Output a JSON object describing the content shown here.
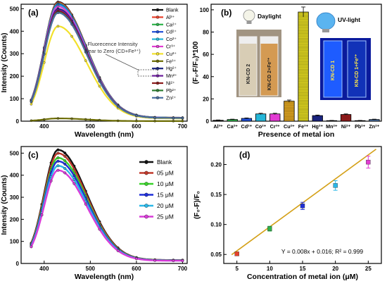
{
  "panels": [
    {
      "label": "(a)",
      "chart_data": {
        "type": "line",
        "xlabel": "Wavelength (nm)",
        "ylabel": "Intensity (Counts)",
        "xlim": [
          350,
          710
        ],
        "ylim": [
          0,
          520
        ],
        "xticks": [
          400,
          500,
          600,
          700
        ],
        "yticks": [
          0,
          100,
          200,
          300,
          400,
          500
        ],
        "peak_wavelength": 430,
        "annotation": [
          "Fluorecence Intensity",
          "Near to Zero (CD+Fe³⁺)"
        ],
        "series": [
          {
            "name": "Blank",
            "peak": 515,
            "color": "#111111",
            "marker": "o"
          },
          {
            "name": "Al³⁺",
            "peak": 512,
            "color": "#e8402a",
            "marker": "o"
          },
          {
            "name": "Ca²⁺",
            "peak": 508,
            "color": "#2db34a",
            "marker": "o"
          },
          {
            "name": "Cd²⁺",
            "peak": 505,
            "color": "#1f4fd8",
            "marker": "o"
          },
          {
            "name": "Co²⁺",
            "peak": 500,
            "color": "#24b6d8",
            "marker": "o"
          },
          {
            "name": "Cr³⁺",
            "peak": 495,
            "color": "#e23bd3",
            "marker": "o"
          },
          {
            "name": "Cu²⁺",
            "peak": 410,
            "color": "#f2e12b",
            "marker": "o"
          },
          {
            "name": "Fe³⁺",
            "peak": 12,
            "color": "#6b6b00",
            "marker": "o"
          },
          {
            "name": "Hg²⁺",
            "peak": 485,
            "color": "#1a237e",
            "marker": "o"
          },
          {
            "name": "Mn²⁺",
            "peak": 480,
            "color": "#6a1b9a",
            "marker": "o"
          },
          {
            "name": "Ni²⁺",
            "peak": 475,
            "color": "#8b1a1a",
            "marker": "o"
          },
          {
            "name": "Pb²⁺",
            "peak": 470,
            "color": "#2e7d32",
            "marker": "o"
          },
          {
            "name": "Zn²⁺",
            "peak": 468,
            "color": "#4a6fa0",
            "marker": "o"
          }
        ]
      }
    },
    {
      "label": "(b)",
      "chart_data": {
        "type": "bar",
        "xlabel": "Presence of metal ion",
        "ylabel": "(F₀-F/F₀)*100",
        "ylim": [
          0,
          105
        ],
        "yticks": [
          0,
          20,
          40,
          60,
          80,
          100
        ],
        "categories": [
          "Al³⁺",
          "Ca²⁺",
          "Cd²⁺",
          "Co²⁺",
          "Cr³⁺",
          "Cu²⁺",
          "Fe³⁺",
          "Hg²⁺",
          "Mn²⁺",
          "Ni²⁺",
          "Pb²⁺",
          "Zn²⁺"
        ],
        "values": [
          0.8,
          1.5,
          2.5,
          6.5,
          6.5,
          18,
          98,
          5,
          0.5,
          6,
          0.5,
          1.5
        ],
        "errors": [
          0.3,
          0.3,
          0.4,
          0.6,
          0.6,
          1.0,
          4.5,
          0.5,
          0.2,
          0.5,
          0.2,
          0.3
        ],
        "colors": [
          "#111111",
          "#2db34a",
          "#1f4fd8",
          "#24b6d8",
          "#e23bd3",
          "#d8a020",
          "#d8d020",
          "#1a237e",
          "#e0e0e0",
          "#8b1a1a",
          "#2e7d32",
          "#4a6fa0"
        ],
        "inset_left": {
          "title": "Daylight",
          "vial1": "KN-CD 2",
          "vial2": "KN-CD 2+Fe³⁺"
        },
        "inset_right": {
          "title": "UV-light",
          "vial1": "KN-CD 1",
          "vial2": "KN-CD 1+Fe³⁺"
        }
      }
    },
    {
      "label": "(c)",
      "chart_data": {
        "type": "line",
        "xlabel": "Wavelength (nm)",
        "ylabel": "Intensity (Counts)",
        "xlim": [
          350,
          710
        ],
        "ylim": [
          0,
          530
        ],
        "xticks": [
          400,
          500,
          600,
          700
        ],
        "yticks": [
          0,
          100,
          200,
          300,
          400,
          500
        ],
        "peak_wavelength": 430,
        "series": [
          {
            "name": "Blank",
            "peak": 500,
            "color": "#111111"
          },
          {
            "name": "05 μM",
            "peak": 485,
            "color": "#c0392b"
          },
          {
            "name": "10 μM",
            "peak": 465,
            "color": "#39d22a"
          },
          {
            "name": "15 μM",
            "peak": 450,
            "color": "#1f2fd8"
          },
          {
            "name": "20 μM",
            "peak": 430,
            "color": "#2ab8e8"
          },
          {
            "name": "25 μM",
            "peak": 410,
            "color": "#d83bd8"
          }
        ]
      }
    },
    {
      "label": "(d)",
      "chart_data": {
        "type": "scatter",
        "xlabel": "Concentration of metal ion (μM)",
        "ylabel": "(F₀-F)/F₀",
        "xlim": [
          3,
          27
        ],
        "ylim": [
          0.035,
          0.23
        ],
        "xticks": [
          5,
          10,
          15,
          20,
          25
        ],
        "yticks": [
          0.05,
          0.1,
          0.15,
          0.2
        ],
        "equation": "Y = 0.008x + 0.016; R² = 0.999",
        "fit": {
          "slope": 0.008,
          "intercept": 0.016,
          "color": "#d4a017"
        },
        "x": [
          5,
          10,
          15,
          20,
          25
        ],
        "y": [
          0.051,
          0.093,
          0.131,
          0.165,
          0.204
        ],
        "errors": [
          0.002,
          0.004,
          0.006,
          0.008,
          0.01
        ],
        "colors": [
          "#e8402a",
          "#2db34a",
          "#1f2fd8",
          "#2ab8e8",
          "#e23bd3"
        ]
      }
    }
  ]
}
